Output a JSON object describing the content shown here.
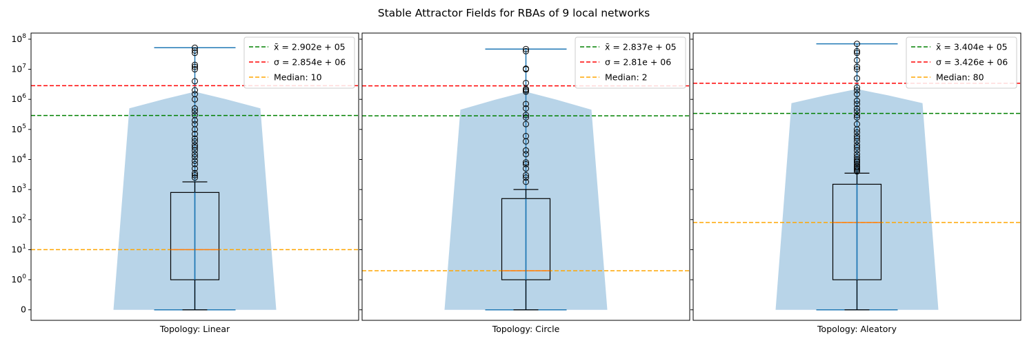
{
  "figure": {
    "title": "Stable Attractor Fields for RBAs of 9 local networks"
  },
  "y_ticks": [
    {
      "v": 0,
      "label": "0",
      "base": "0",
      "exp": ""
    },
    {
      "v": 1,
      "label": "10^0",
      "base": "10",
      "exp": "0"
    },
    {
      "v": 10,
      "label": "10^1",
      "base": "10",
      "exp": "1"
    },
    {
      "v": 100,
      "label": "10^2",
      "base": "10",
      "exp": "2"
    },
    {
      "v": 1000,
      "label": "10^3",
      "base": "10",
      "exp": "3"
    },
    {
      "v": 10000,
      "label": "10^4",
      "base": "10",
      "exp": "4"
    },
    {
      "v": 100000,
      "label": "10^5",
      "base": "10",
      "exp": "5"
    },
    {
      "v": 1000000,
      "label": "10^6",
      "base": "10",
      "exp": "6"
    },
    {
      "v": 10000000,
      "label": "10^7",
      "base": "10",
      "exp": "7"
    },
    {
      "v": 100000000,
      "label": "10^8",
      "base": "10",
      "exp": "8"
    }
  ],
  "colors": {
    "violin": "#b8d4e8",
    "whisker": "#1f77b4",
    "box": "#000000",
    "median_line": "#ff7f0e",
    "mean": "#008000",
    "sigma": "#ff0000",
    "median": "#ffa500"
  },
  "chart_data": [
    {
      "type": "box-violin",
      "xlabel": "Topology: Linear",
      "yscale": "symlog",
      "ylim": [
        -0.35,
        160000000
      ],
      "box": {
        "q1": 1,
        "median": 10,
        "q3": 800,
        "whisker_low": 0,
        "whisker_high": 1800,
        "min": 0,
        "max": 52000000
      },
      "outliers": [
        2500,
        3000,
        3500,
        5000,
        7000,
        9000,
        12000,
        15000,
        20000,
        25000,
        30000,
        40000,
        50000,
        70000,
        100000,
        150000,
        200000,
        300000,
        400000,
        500000,
        1000000,
        1500000,
        2000000,
        4000000,
        10000000,
        12000000,
        14000000,
        35000000,
        42000000,
        52000000
      ],
      "violin": {
        "bottom": 0,
        "top": 1800000,
        "shoulder": 500000
      },
      "mean_line": 290200,
      "sigma_line": 2854000,
      "median_line": 10,
      "legend": [
        {
          "base": "x̄ = 2.902e + 05",
          "key": "mean"
        },
        {
          "base": "σ = 2.854e + 06",
          "key": "sigma"
        },
        {
          "base": "Median: 10",
          "key": "median"
        }
      ]
    },
    {
      "type": "box-violin",
      "xlabel": "Topology: Circle",
      "yscale": "symlog",
      "ylim": [
        -0.35,
        160000000
      ],
      "box": {
        "q1": 1,
        "median": 2,
        "q3": 500,
        "whisker_low": 0,
        "whisker_high": 1000,
        "min": 0,
        "max": 47000000
      },
      "outliers": [
        1800,
        2500,
        3000,
        5000,
        7000,
        8000,
        15000,
        20000,
        40000,
        60000,
        150000,
        250000,
        300000,
        500000,
        700000,
        1800000,
        2000000,
        2200000,
        3500000,
        10000000,
        10500000,
        40000000,
        47000000
      ],
      "violin": {
        "bottom": 0,
        "top": 1800000,
        "shoulder": 450000
      },
      "mean_line": 283700,
      "sigma_line": 2810000,
      "median_line": 2,
      "legend": [
        {
          "base": "x̄ = 2.837e + 05",
          "key": "mean"
        },
        {
          "base": "σ = 2.81e + 06",
          "key": "sigma"
        },
        {
          "base": "Median: 2",
          "key": "median"
        }
      ]
    },
    {
      "type": "box-violin",
      "xlabel": "Topology: Aleatory",
      "yscale": "symlog",
      "ylim": [
        -0.35,
        160000000
      ],
      "box": {
        "q1": 1,
        "median": 80,
        "q3": 1500,
        "whisker_low": 0,
        "whisker_high": 3500,
        "min": 0,
        "max": 70000000
      },
      "outliers": [
        4000,
        4500,
        5000,
        5500,
        6000,
        7000,
        8000,
        9000,
        10000,
        12000,
        15000,
        20000,
        25000,
        30000,
        40000,
        50000,
        60000,
        80000,
        100000,
        150000,
        250000,
        300000,
        400000,
        500000,
        700000,
        900000,
        1500000,
        2000000,
        2500000,
        5000000,
        10000000,
        12000000,
        20000000,
        35000000,
        40000000,
        70000000
      ],
      "violin": {
        "bottom": 0,
        "top": 2200000,
        "shoulder": 750000
      },
      "mean_line": 340400,
      "sigma_line": 3426000,
      "median_line": 80,
      "legend": [
        {
          "base": "x̄ = 3.404e + 05",
          "key": "mean"
        },
        {
          "base": "σ = 3.426e + 06",
          "key": "sigma"
        },
        {
          "base": "Median: 80",
          "key": "median"
        }
      ]
    }
  ]
}
